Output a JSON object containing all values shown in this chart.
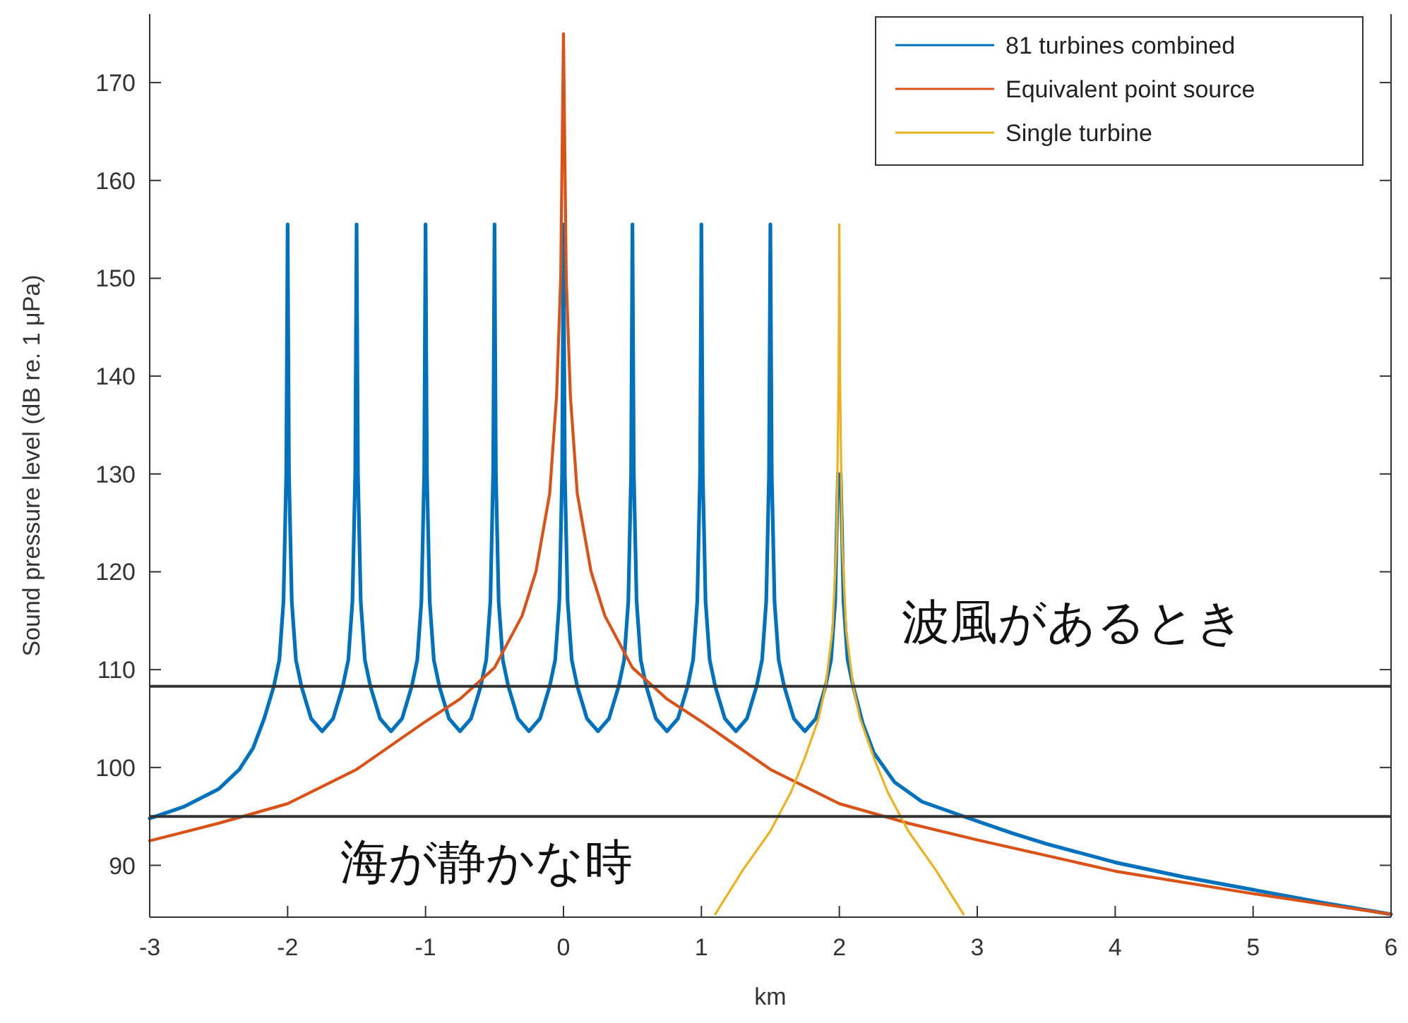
{
  "chart_data": {
    "type": "line",
    "xlabel": "km",
    "ylabel": "Sound pressure level (dB re. 1 μPa)",
    "xlim": [
      -3,
      6
    ],
    "xticks": [
      -3,
      -2,
      -1,
      0,
      1,
      2,
      3,
      4,
      5,
      6
    ],
    "ylim": [
      84.7,
      177
    ],
    "yticks": [
      90,
      100,
      110,
      120,
      130,
      140,
      150,
      160,
      170
    ],
    "grid": false,
    "legend": "top right",
    "marker": "none",
    "line_style": "solid",
    "ref_lines": [
      {
        "axis": "y",
        "value": 108.3,
        "label": "波風があるとき",
        "color": "#333333"
      },
      {
        "axis": "y",
        "value": 95,
        "label": "海が静かな時",
        "color": "#333333"
      }
    ],
    "series": [
      {
        "name": "81 turbines combined",
        "color": "#0072bd",
        "x": [
          -3,
          -2.75,
          -2.5,
          -2.35,
          -2.25,
          -2.17,
          -2.1,
          -2.06,
          -2.03,
          -2.01,
          -2,
          -1.99,
          -1.97,
          -1.94,
          -1.9,
          -1.83,
          -1.75,
          -1.67,
          -1.6,
          -1.56,
          -1.53,
          -1.51,
          -1.5,
          -1.49,
          -1.47,
          -1.44,
          -1.4,
          -1.33,
          -1.25,
          -1.17,
          -1.1,
          -1.06,
          -1.03,
          -1.01,
          -1,
          -0.99,
          -0.97,
          -0.94,
          -0.9,
          -0.83,
          -0.75,
          -0.67,
          -0.6,
          -0.56,
          -0.53,
          -0.51,
          -0.5,
          -0.49,
          -0.47,
          -0.44,
          -0.4,
          -0.33,
          -0.25,
          -0.17,
          -0.1,
          -0.06,
          -0.03,
          -0.01,
          0,
          0.01,
          0.03,
          0.06,
          0.1,
          0.17,
          0.25,
          0.33,
          0.4,
          0.44,
          0.47,
          0.49,
          0.5,
          0.51,
          0.53,
          0.56,
          0.6,
          0.67,
          0.75,
          0.83,
          0.9,
          0.94,
          0.97,
          0.99,
          1,
          1.01,
          1.03,
          1.06,
          1.1,
          1.17,
          1.25,
          1.33,
          1.4,
          1.44,
          1.47,
          1.49,
          1.5,
          1.51,
          1.53,
          1.56,
          1.6,
          1.67,
          1.75,
          1.83,
          1.9,
          1.94,
          1.97,
          1.99,
          2,
          2.01,
          2.03,
          2.06,
          2.1,
          2.17,
          2.25,
          2.4,
          2.6,
          2.9,
          3.25,
          3.5,
          4,
          4.5,
          5,
          5.5,
          6
        ],
        "values": [
          94.8,
          96,
          97.8,
          99.8,
          102,
          105,
          108.3,
          111,
          117,
          130,
          155.5,
          130,
          117,
          111,
          108.3,
          105,
          103.7,
          105,
          108.3,
          111,
          117,
          130,
          155.5,
          130,
          117,
          111,
          108.3,
          105,
          103.7,
          105,
          108.3,
          111,
          117,
          130,
          155.5,
          130,
          117,
          111,
          108.3,
          105,
          103.7,
          105,
          108.3,
          111,
          117,
          130,
          155.5,
          130,
          117,
          111,
          108.3,
          105,
          103.7,
          105,
          108.3,
          111,
          117,
          130,
          155.5,
          130,
          117,
          111,
          108.3,
          105,
          103.7,
          105,
          108.3,
          111,
          117,
          130,
          155.5,
          130,
          117,
          111,
          108.3,
          105,
          103.7,
          105,
          108.3,
          111,
          117,
          130,
          155.5,
          130,
          117,
          111,
          108.3,
          105,
          103.7,
          105,
          108.3,
          111,
          117,
          130,
          155.5,
          130,
          117,
          111,
          108.3,
          105,
          103.7,
          105,
          108.3,
          111,
          117,
          130,
          null,
          130,
          117,
          111,
          108.3,
          104.5,
          101.5,
          98.5,
          96.5,
          95,
          93.3,
          92.2,
          90.3,
          88.8,
          87.5,
          86.2,
          85
        ]
      },
      {
        "name": "Equivalent point source",
        "color": "#d95319",
        "x": [
          -3,
          -2.5,
          -2,
          -1.5,
          -1,
          -0.75,
          -0.5,
          -0.3,
          -0.2,
          -0.1,
          -0.05,
          -0.02,
          0,
          0.02,
          0.05,
          0.1,
          0.2,
          0.3,
          0.5,
          0.75,
          1,
          1.5,
          2,
          2.5,
          3,
          4,
          5,
          6
        ],
        "values": [
          92.5,
          94.3,
          96.3,
          99.8,
          104.7,
          107,
          110.2,
          115.5,
          120,
          128,
          138,
          150,
          175,
          150,
          138,
          128,
          120,
          115.5,
          110.2,
          107,
          104.7,
          99.8,
          96.3,
          94.3,
          92.6,
          89.4,
          87.1,
          85
        ]
      },
      {
        "name": "Single turbine",
        "color": "#edb120",
        "x": [
          1.1,
          1.3,
          1.5,
          1.65,
          1.75,
          1.85,
          1.9,
          1.95,
          1.98,
          1.995,
          2,
          2.005,
          2.02,
          2.05,
          2.1,
          2.15,
          2.25,
          2.35,
          2.5,
          2.7,
          2.9
        ],
        "values": [
          85,
          89.5,
          93.5,
          97.5,
          101,
          105,
          108.3,
          114,
          123,
          140,
          155.5,
          140,
          123,
          114,
          108.3,
          105,
          101,
          97.5,
          93.5,
          89.5,
          85
        ]
      }
    ]
  }
}
